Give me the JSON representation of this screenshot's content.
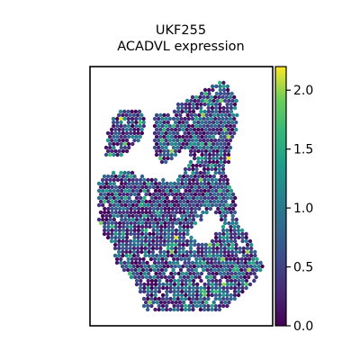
{
  "chart_data": {
    "type": "scatter",
    "subtype": "spatial-spot-map",
    "title": [
      "UKF255",
      "ACADVL expression"
    ],
    "xlabel": "",
    "ylabel": "",
    "axis_ticks_visible": false,
    "grid": false,
    "color_variable": "ACADVL expression",
    "colormap": "viridis",
    "colorbar": {
      "range": [
        0.0,
        2.2
      ],
      "ticks": [
        0.0,
        0.5,
        1.0,
        1.5,
        2.0
      ],
      "tick_labels": [
        "0.0",
        "0.5",
        "1.0",
        "1.5",
        "2.0"
      ],
      "placement": "right"
    },
    "colors": {
      "viridis_0": "#440154",
      "viridis_25": "#3b528b",
      "viridis_50": "#21918c",
      "viridis_75": "#5ec962",
      "viridis_100": "#fde725"
    },
    "tissue_outline_note": "hexagonal grid of measurement spots; values range 0.0 to ~2.2, most spots between 0.0 and 1.2"
  }
}
